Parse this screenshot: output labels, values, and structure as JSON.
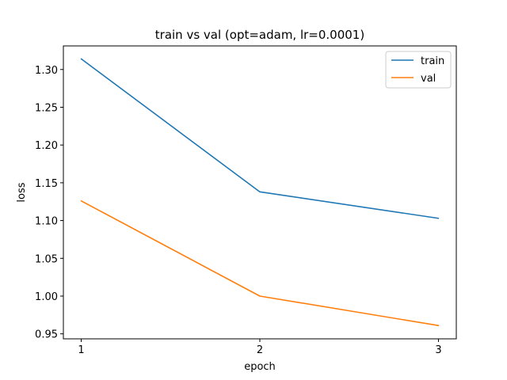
{
  "chart_data": {
    "type": "line",
    "title": "train vs val (opt=adam, lr=0.0001)",
    "xlabel": "epoch",
    "ylabel": "loss",
    "x": [
      1,
      2,
      3
    ],
    "xticks": [
      "1",
      "2",
      "3"
    ],
    "xlim": [
      0.9,
      3.1
    ],
    "ylim": [
      0.9434,
      1.3312
    ],
    "yticks": [
      0.95,
      1.0,
      1.05,
      1.1,
      1.15,
      1.2,
      1.25,
      1.3
    ],
    "ytick_labels": [
      "0.95",
      "1.00",
      "1.05",
      "1.10",
      "1.15",
      "1.20",
      "1.25",
      "1.30"
    ],
    "grid": false,
    "legend_position": "top-right",
    "series": [
      {
        "name": "train",
        "color": "#1f77b4",
        "values": [
          1.314,
          1.138,
          1.103
        ]
      },
      {
        "name": "val",
        "color": "#ff7f0e",
        "values": [
          1.126,
          1.0,
          0.961
        ]
      }
    ]
  }
}
